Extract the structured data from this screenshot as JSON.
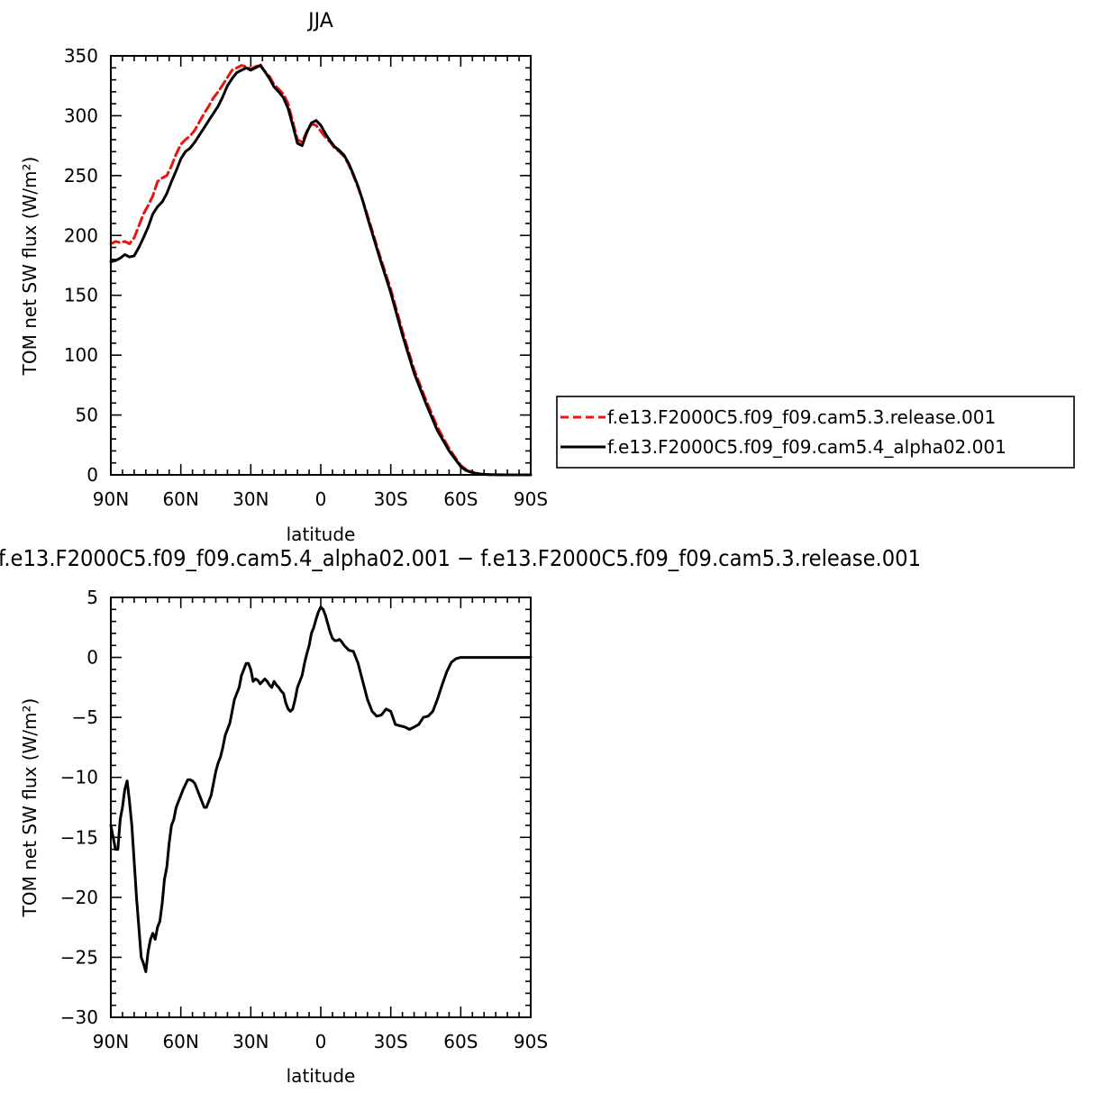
{
  "chart_data": [
    {
      "type": "line",
      "title": "JJA",
      "xlabel": "latitude",
      "ylabel": "TOM net SW flux (W/m²)",
      "xlim": [
        90,
        -90
      ],
      "ylim": [
        0,
        350
      ],
      "xticks": [
        {
          "value": 90,
          "label": "90N"
        },
        {
          "value": 60,
          "label": "60N"
        },
        {
          "value": 30,
          "label": "30N"
        },
        {
          "value": 0,
          "label": "0"
        },
        {
          "value": -30,
          "label": "30S"
        },
        {
          "value": -60,
          "label": "60S"
        },
        {
          "value": -90,
          "label": "90S"
        }
      ],
      "yticks": [
        0,
        50,
        100,
        150,
        200,
        250,
        300,
        350
      ],
      "grid": false,
      "legend": "right",
      "series": [
        {
          "name": "f.e13.F2000C5.f09_f09.cam5.3.release.001",
          "color": "#e8140f",
          "dash": "dashed",
          "x": [
            90,
            88,
            86,
            84,
            82,
            80,
            78,
            76,
            74,
            72,
            70,
            68,
            66,
            64,
            62,
            60,
            58,
            56,
            54,
            52,
            50,
            48,
            46,
            44,
            42,
            40,
            38,
            36,
            34,
            32,
            30,
            28,
            26,
            24,
            22,
            20,
            18,
            16,
            14,
            12,
            10,
            8,
            6,
            4,
            2,
            0,
            -2,
            -4,
            -6,
            -8,
            -10,
            -12,
            -14,
            -16,
            -18,
            -20,
            -25,
            -30,
            -35,
            -40,
            -45,
            -50,
            -55,
            -60,
            -62,
            -64,
            -66,
            -68,
            -70,
            -72,
            -75,
            -80,
            -85,
            -90
          ],
          "y": [
            193,
            195,
            194,
            195,
            193,
            198,
            208,
            218,
            225,
            233,
            245,
            248,
            250,
            258,
            268,
            276,
            280,
            283,
            288,
            295,
            302,
            308,
            315,
            320,
            326,
            332,
            338,
            340,
            342,
            341,
            339,
            341,
            343,
            337,
            333,
            326,
            322,
            318,
            310,
            295,
            280,
            278,
            287,
            293,
            292,
            287,
            282,
            278,
            273,
            270,
            266,
            259,
            250,
            240,
            229,
            217,
            185,
            155,
            120,
            88,
            63,
            40,
            22,
            8,
            5,
            3,
            1.5,
            0.8,
            0.4,
            0.2,
            0.1,
            0,
            0,
            0
          ]
        },
        {
          "name": "f.e13.F2000C5.f09_f09.cam5.4_alpha02.001",
          "color": "#000000",
          "dash": "solid",
          "x": [
            90,
            88,
            86,
            84,
            82,
            80,
            78,
            76,
            74,
            72,
            70,
            68,
            66,
            64,
            62,
            60,
            58,
            56,
            54,
            52,
            50,
            48,
            46,
            44,
            42,
            40,
            38,
            36,
            34,
            32,
            30,
            28,
            26,
            24,
            22,
            20,
            18,
            16,
            14,
            12,
            10,
            8,
            6,
            4,
            2,
            0,
            -2,
            -4,
            -6,
            -8,
            -10,
            -12,
            -14,
            -16,
            -18,
            -20,
            -25,
            -30,
            -35,
            -40,
            -45,
            -50,
            -55,
            -60,
            -62,
            -64,
            -66,
            -68,
            -70,
            -72,
            -75,
            -80,
            -85,
            -90
          ],
          "y": [
            178,
            179,
            181,
            184,
            182,
            183,
            190,
            198,
            207,
            218,
            224,
            228,
            235,
            245,
            254,
            264,
            270,
            273,
            278,
            284,
            290,
            296,
            302,
            308,
            316,
            325,
            331,
            336,
            338,
            340,
            338,
            340,
            342,
            337,
            331,
            324,
            320,
            315,
            306,
            292,
            277,
            275,
            286,
            294,
            296,
            292,
            285,
            279,
            274,
            271,
            267,
            260,
            251,
            241,
            229,
            215,
            183,
            152,
            117,
            85,
            60,
            37,
            20,
            7,
            4,
            2.5,
            1.5,
            0.8,
            0.4,
            0.2,
            0.1,
            0,
            0,
            0
          ]
        }
      ]
    },
    {
      "type": "line",
      "title": "f.e13.F2000C5.f09_f09.cam5.4_alpha02.001  −  f.e13.F2000C5.f09_f09.cam5.3.release.001",
      "xlabel": "latitude",
      "ylabel": "TOM net SW flux (W/m²)",
      "xlim": [
        90,
        -90
      ],
      "ylim": [
        -30,
        5
      ],
      "xticks": [
        {
          "value": 90,
          "label": "90N"
        },
        {
          "value": 60,
          "label": "60N"
        },
        {
          "value": 30,
          "label": "30N"
        },
        {
          "value": 0,
          "label": "0"
        },
        {
          "value": -30,
          "label": "30S"
        },
        {
          "value": -60,
          "label": "60S"
        },
        {
          "value": -90,
          "label": "90S"
        }
      ],
      "yticks": [
        5,
        0,
        -5,
        -10,
        -15,
        -20,
        -25,
        -30
      ],
      "yticklabels": [
        "5",
        "0",
        "−5",
        "−10",
        "−15",
        "−20",
        "−25",
        "−30"
      ],
      "grid": false,
      "series": [
        {
          "color": "#000000",
          "dash": "solid",
          "x": [
            90,
            89,
            88,
            87,
            86,
            85,
            84,
            83,
            82,
            81,
            80,
            79,
            78,
            77,
            76,
            75,
            74,
            73,
            72,
            71,
            70,
            69,
            68,
            67,
            66,
            65,
            64,
            63,
            62,
            61,
            60,
            59,
            58,
            57,
            56,
            55,
            54,
            53,
            52,
            51,
            50,
            49,
            48,
            47,
            46,
            45,
            44,
            43,
            42,
            41,
            40,
            39,
            38,
            37,
            36,
            35,
            34,
            33,
            32,
            31,
            30,
            29,
            28,
            27,
            26,
            25,
            24,
            23,
            22,
            21,
            20,
            19,
            18,
            17,
            16,
            15,
            14,
            13,
            12,
            11,
            10,
            9,
            8,
            7,
            6,
            5,
            4,
            3,
            2,
            1,
            0,
            -1,
            -2,
            -3,
            -4,
            -5,
            -6,
            -7,
            -8,
            -9,
            -10,
            -12,
            -14,
            -16,
            -18,
            -20,
            -22,
            -24,
            -26,
            -28,
            -30,
            -32,
            -34,
            -36,
            -38,
            -40,
            -42,
            -44,
            -46,
            -48,
            -50,
            -52,
            -54,
            -56,
            -58,
            -60,
            -62,
            -64,
            -66,
            -68,
            -70,
            -75,
            -80,
            -85,
            -90
          ],
          "y": [
            -14,
            -15,
            -16,
            -16,
            -13.5,
            -12.5,
            -11,
            -10.3,
            -12,
            -14,
            -17,
            -20,
            -22.5,
            -25,
            -25.5,
            -26.2,
            -24.5,
            -23.5,
            -23,
            -23.5,
            -22.5,
            -22,
            -20.5,
            -18.5,
            -17.5,
            -15.5,
            -14,
            -13.5,
            -12.5,
            -12,
            -11.5,
            -11,
            -10.6,
            -10.2,
            -10.2,
            -10.3,
            -10.5,
            -11,
            -11.5,
            -12,
            -12.5,
            -12.5,
            -12,
            -11.5,
            -10.5,
            -9.5,
            -8.8,
            -8.3,
            -7.5,
            -6.5,
            -6,
            -5.5,
            -4.5,
            -3.5,
            -3,
            -2.5,
            -1.5,
            -1,
            -0.5,
            -0.5,
            -1,
            -2,
            -1.8,
            -1.9,
            -2.2,
            -2,
            -1.8,
            -2,
            -2.3,
            -2.5,
            -2,
            -2.3,
            -2.5,
            -2.8,
            -3,
            -3.8,
            -4.3,
            -4.5,
            -4.3,
            -3.5,
            -2.5,
            -2,
            -1.5,
            -0.5,
            0.3,
            1,
            2,
            2.5,
            3.2,
            3.8,
            4.2,
            4.0,
            3.5,
            2.8,
            2.1,
            1.6,
            1.4,
            1.4,
            1.5,
            1.3,
            1.0,
            0.6,
            0.5,
            -0.5,
            -2,
            -3.5,
            -4.5,
            -4.9,
            -4.8,
            -4.3,
            -4.5,
            -5.6,
            -5.7,
            -5.8,
            -6.0,
            -5.8,
            -5.6,
            -5.0,
            -4.9,
            -4.5,
            -3.5,
            -2.3,
            -1.2,
            -0.4,
            -0.1,
            0,
            0,
            0,
            0,
            0,
            0,
            0,
            0,
            0,
            0
          ]
        }
      ]
    }
  ]
}
